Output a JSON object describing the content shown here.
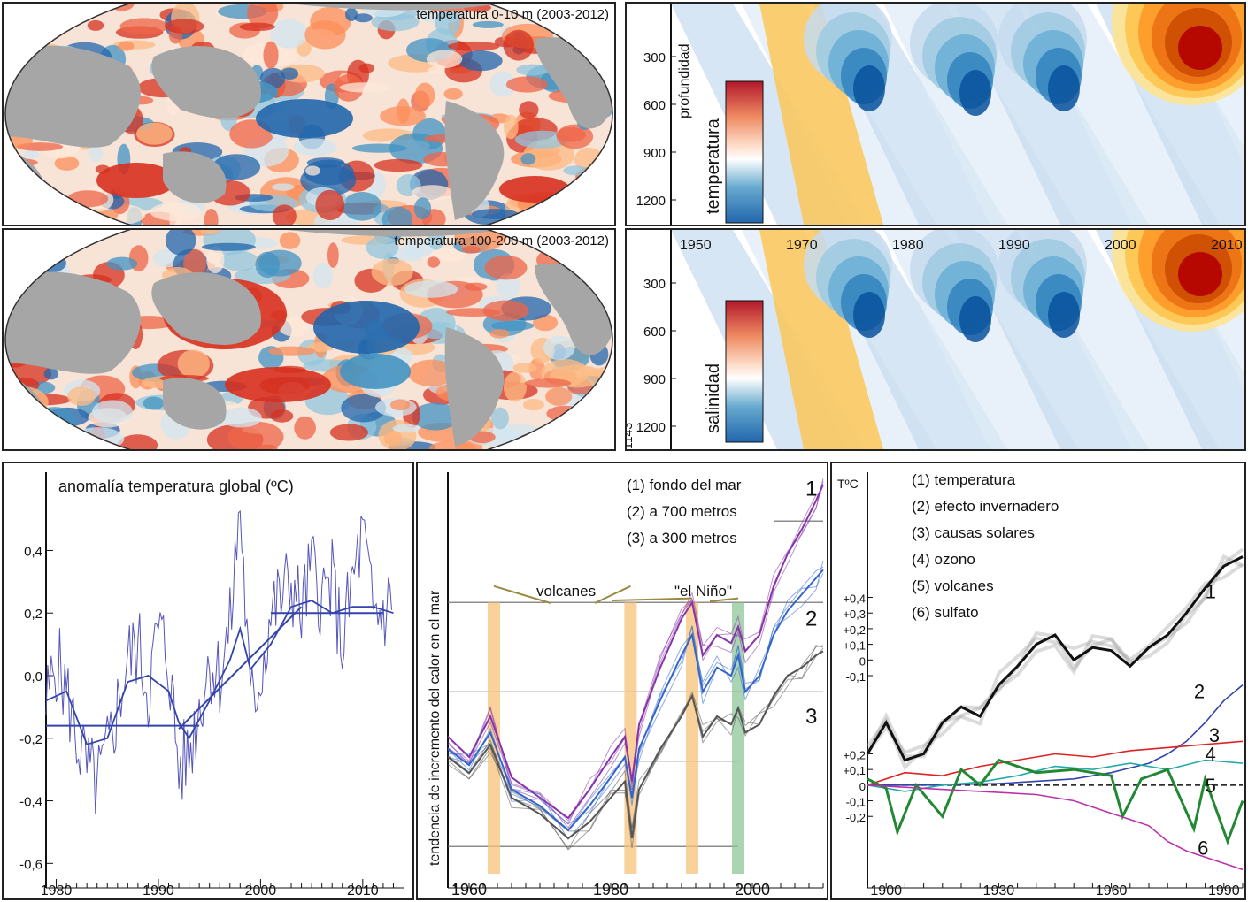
{
  "maps": [
    {
      "title": "temperatura 0-10 m (2003-2012)"
    },
    {
      "title": "temperatura 100-200 m (2003-2012)"
    }
  ],
  "sections": {
    "top": {
      "ylabel": "profundidad",
      "colorbar_label": "temperatura",
      "depth_ticks": [
        "300",
        "600",
        "900",
        "1200"
      ]
    },
    "bottom": {
      "colorbar_label": "salinidad",
      "year_ticks": [
        "1950",
        "1970",
        "1980",
        "1990",
        "2000",
        "2010"
      ],
      "depth_ticks": [
        "300",
        "600",
        "900",
        "1200"
      ],
      "depth_min_label": "1143"
    }
  },
  "chart_data": [
    {
      "type": "line",
      "title": "anomalía temperatura global (ºC)",
      "xlim": [
        1979,
        2014
      ],
      "ylim": [
        -0.65,
        0.65
      ],
      "xticks": [
        "1980",
        "1990",
        "2000",
        "2010"
      ],
      "yticks": [
        "0,4",
        "0,2",
        "0,0",
        "-0,2",
        "-0,4",
        "-0,6"
      ],
      "series": [
        {
          "name": "",
          "color": "#5555bb",
          "x": [
            1979,
            1980,
            1981,
            1982,
            1983,
            1984,
            1985,
            1986,
            1987,
            1988,
            1989,
            1990,
            1991,
            1992,
            1993,
            1994,
            1995,
            1996,
            1997,
            1998,
            1999,
            2000,
            2001,
            2002,
            2003,
            2004,
            2005,
            2006,
            2007,
            2008,
            2009,
            2010,
            2011,
            2012,
            2013
          ],
          "y": [
            -0.1,
            0.05,
            -0.05,
            -0.2,
            -0.3,
            -0.35,
            -0.25,
            -0.1,
            0.05,
            0.1,
            -0.05,
            0.15,
            0.05,
            -0.3,
            -0.25,
            -0.1,
            0.05,
            0.0,
            0.15,
            0.55,
            -0.1,
            0.0,
            0.2,
            0.25,
            0.3,
            0.2,
            0.35,
            0.25,
            0.3,
            0.1,
            0.3,
            0.45,
            0.2,
            0.2,
            0.25
          ]
        },
        {
          "name": "",
          "color": "#3344aa",
          "x": [
            1979,
            1981,
            1983,
            1985,
            1987,
            1989,
            1991,
            1992,
            1993,
            1995,
            1997,
            1998,
            1999,
            2001,
            2003,
            2005,
            2007,
            2009,
            2011,
            2013
          ],
          "y": [
            -0.08,
            -0.05,
            -0.22,
            -0.2,
            -0.02,
            0.0,
            -0.05,
            -0.15,
            -0.2,
            -0.08,
            0.05,
            0.15,
            0.02,
            0.1,
            0.22,
            0.24,
            0.2,
            0.22,
            0.22,
            0.2
          ]
        }
      ],
      "trend_lines": [
        {
          "x": [
            1979,
            1994
          ],
          "y": [
            -0.16,
            -0.16
          ]
        },
        {
          "x": [
            1992,
            2004
          ],
          "y": [
            -0.17,
            0.22
          ]
        },
        {
          "x": [
            2001,
            2012
          ],
          "y": [
            0.2,
            0.2
          ]
        }
      ]
    },
    {
      "type": "line",
      "ylabel": "tendencia de incremento del calor en el mar",
      "xlim": [
        1957,
        2010
      ],
      "ylim": [
        0,
        100
      ],
      "xticks": [
        "1960",
        "1980",
        "2000"
      ],
      "legend": [
        "(1) fondo del mar",
        "(2) a 700 metros",
        "(3) a 300 metros"
      ],
      "curve_labels": [
        "1",
        "2",
        "3"
      ],
      "annotations": {
        "volcanes": "volcanes",
        "nino": "\"el Niño\""
      },
      "volcano_years": [
        1963.5,
        1982.8,
        1991.5
      ],
      "nino_year": 1998,
      "series": [
        {
          "name": "(1) fondo del mar",
          "color": "#8833aa",
          "x": [
            1957,
            1960,
            1963,
            1966,
            1970,
            1974,
            1977,
            1980,
            1982,
            1983,
            1984,
            1987,
            1990,
            1991.5,
            1993,
            1995,
            1997,
            1998,
            1999,
            2001,
            2003,
            2005,
            2007,
            2009,
            2010
          ],
          "y": [
            35,
            30,
            40,
            25,
            20,
            15,
            22,
            30,
            35,
            24,
            38,
            52,
            64,
            68,
            55,
            60,
            58,
            62,
            56,
            60,
            72,
            80,
            86,
            93,
            97
          ]
        },
        {
          "name": "(2) a 700 metros",
          "color": "#3366cc",
          "x": [
            1957,
            1960,
            1963,
            1966,
            1970,
            1974,
            1977,
            1980,
            1982,
            1983,
            1984,
            1987,
            1990,
            1991.5,
            1993,
            1995,
            1997,
            1998,
            1999,
            2001,
            2003,
            2005,
            2007,
            2009,
            2010
          ],
          "y": [
            32,
            28,
            36,
            22,
            18,
            12,
            18,
            25,
            30,
            20,
            32,
            44,
            55,
            60,
            46,
            52,
            50,
            55,
            46,
            50,
            60,
            66,
            70,
            74,
            76
          ]
        },
        {
          "name": "(3) a 300 metros",
          "color": "#555555",
          "x": [
            1957,
            1960,
            1963,
            1966,
            1970,
            1974,
            1977,
            1980,
            1982,
            1983,
            1984,
            1987,
            1990,
            1991.5,
            1993,
            1995,
            1997,
            1998,
            1999,
            2001,
            2003,
            2005,
            2007,
            2009,
            2010
          ],
          "y": [
            30,
            26,
            33,
            20,
            16,
            10,
            14,
            20,
            24,
            10,
            22,
            32,
            40,
            45,
            35,
            40,
            38,
            42,
            36,
            38,
            45,
            50,
            52,
            55,
            56
          ]
        }
      ]
    },
    {
      "type": "line",
      "yunit": "TºC",
      "xlim": [
        1895,
        1995
      ],
      "ylim": [
        -0.3,
        1.0
      ],
      "xticks": [
        "1900",
        "1930",
        "1960",
        "1990"
      ],
      "yticks_upper": [
        "+0,4",
        "+0,3",
        "+0,2",
        "+0,1",
        "0",
        "-0,1"
      ],
      "yticks_lower": [
        "+0,2",
        "+0,1",
        "0",
        "-0,1",
        "-0,2"
      ],
      "legend": [
        "(1) temperatura",
        "(2) efecto invernadero",
        "(3) causas solares",
        "(4) ozono",
        "(5) volcanes",
        "(6) sulfato"
      ],
      "curve_labels": [
        "1",
        "2",
        "3",
        "4",
        "5",
        "6"
      ],
      "series": [
        {
          "name": "(1) temperatura",
          "color": "#111111",
          "x": [
            1895,
            1900,
            1905,
            1910,
            1915,
            1920,
            1925,
            1930,
            1935,
            1940,
            1945,
            1950,
            1955,
            1960,
            1965,
            1970,
            1975,
            1980,
            1985,
            1990,
            1995
          ],
          "y": [
            0.1,
            0.2,
            0.08,
            0.1,
            0.2,
            0.25,
            0.22,
            0.32,
            0.38,
            0.45,
            0.48,
            0.4,
            0.44,
            0.43,
            0.38,
            0.44,
            0.48,
            0.55,
            0.63,
            0.7,
            0.73
          ]
        },
        {
          "name": "(2) efecto invernadero",
          "color": "#3344aa",
          "x": [
            1895,
            1910,
            1930,
            1950,
            1960,
            1970,
            1975,
            1980,
            1985,
            1990,
            1995
          ],
          "y": [
            0.0,
            0.0,
            0.005,
            0.02,
            0.04,
            0.07,
            0.1,
            0.14,
            0.2,
            0.27,
            0.32
          ]
        },
        {
          "name": "(3) causas solares",
          "color": "#dd2222",
          "x": [
            1895,
            1905,
            1915,
            1925,
            1935,
            1945,
            1955,
            1965,
            1975,
            1985,
            1995
          ],
          "y": [
            0.0,
            0.04,
            0.03,
            0.06,
            0.08,
            0.1,
            0.09,
            0.11,
            0.12,
            0.13,
            0.14
          ]
        },
        {
          "name": "(4) ozono",
          "color": "#22aaaa",
          "x": [
            1895,
            1905,
            1915,
            1925,
            1935,
            1945,
            1955,
            1965,
            1975,
            1985,
            1995
          ],
          "y": [
            0.0,
            -0.02,
            0.0,
            0.01,
            0.03,
            0.06,
            0.05,
            0.07,
            0.05,
            0.08,
            0.07
          ]
        },
        {
          "name": "(5) volcanes",
          "color": "#228833",
          "x": [
            1895,
            1900,
            1903,
            1908,
            1915,
            1920,
            1925,
            1930,
            1940,
            1950,
            1960,
            1963,
            1968,
            1975,
            1982,
            1985,
            1991,
            1995
          ],
          "y": [
            0.02,
            -0.01,
            -0.15,
            0.0,
            -0.1,
            0.05,
            0.0,
            0.08,
            0.04,
            0.05,
            0.03,
            -0.1,
            0.02,
            0.05,
            -0.14,
            0.02,
            -0.18,
            -0.05
          ]
        },
        {
          "name": "(6) sulfato",
          "color": "#bb33aa",
          "x": [
            1895,
            1910,
            1925,
            1940,
            1950,
            1960,
            1970,
            1975,
            1980,
            1985,
            1990,
            1995
          ],
          "y": [
            0.0,
            -0.01,
            -0.02,
            -0.03,
            -0.05,
            -0.09,
            -0.13,
            -0.18,
            -0.21,
            -0.23,
            -0.25,
            -0.27
          ]
        }
      ]
    }
  ]
}
